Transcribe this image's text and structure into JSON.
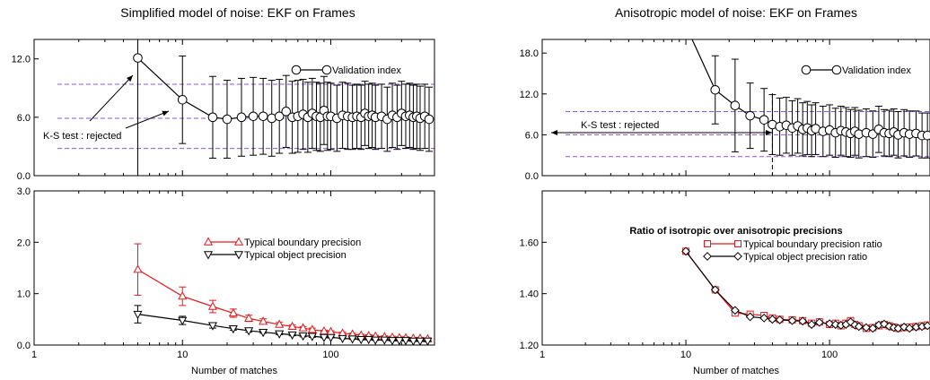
{
  "chart_data": [
    {
      "type": "line",
      "title": "Simplified model of noise: EKF on Frames",
      "xscale": "log",
      "xlim": [
        1,
        500
      ],
      "ylim": [
        0,
        14
      ],
      "yticks": [
        0,
        6,
        12
      ],
      "ytick_labels": [
        "0.0",
        "6.0",
        "12.0"
      ],
      "xticks": [
        1,
        10,
        100
      ],
      "xtick_labels": [
        "",
        "",
        ""
      ],
      "dashed_hlines": [
        2.8,
        5.9,
        9.4
      ],
      "vline": 5,
      "legend": "top-right",
      "series": [
        {
          "name": "Validation index",
          "marker": "circle",
          "x": [
            5,
            10,
            16,
            20,
            25,
            30,
            35,
            40,
            45,
            50,
            55,
            60,
            65,
            70,
            75,
            80,
            85,
            90,
            95,
            100,
            110,
            120,
            130,
            140,
            150,
            160,
            170,
            180,
            190,
            200,
            220,
            240,
            260,
            280,
            300,
            320,
            340,
            360,
            380,
            400,
            430,
            460
          ],
          "y": [
            12.1,
            7.8,
            6.0,
            5.8,
            6.0,
            6.1,
            6.1,
            5.9,
            6.1,
            6.6,
            6.0,
            6.1,
            6.3,
            6.0,
            6.4,
            6.1,
            6.0,
            6.7,
            6.1,
            6.1,
            5.9,
            6.2,
            6.1,
            6.0,
            6.1,
            6.0,
            6.4,
            6.1,
            6.2,
            6.0,
            6.1,
            5.8,
            6.2,
            6.0,
            6.4,
            6.1,
            6.2,
            6.0,
            6.1,
            5.9,
            6.1,
            5.8
          ],
          "error": [
            0,
            4.5,
            4.2,
            4.0,
            4.0,
            4.0,
            3.9,
            3.9,
            3.8,
            3.7,
            3.7,
            3.7,
            3.6,
            3.6,
            3.6,
            3.5,
            3.5,
            3.5,
            3.5,
            3.4,
            3.4,
            3.4,
            3.4,
            3.3,
            3.3,
            3.3,
            3.3,
            3.3,
            3.3,
            3.3,
            3.3,
            3.3,
            3.3,
            3.3,
            3.3,
            3.3,
            3.3,
            3.3,
            3.3,
            3.3,
            3.3,
            3.3
          ]
        }
      ],
      "annotations": [
        "K-S test : rejected"
      ]
    },
    {
      "type": "line",
      "title": "",
      "xscale": "log",
      "xlim": [
        1,
        500
      ],
      "ylim": [
        0,
        3.0
      ],
      "yticks": [
        0,
        1,
        2,
        3
      ],
      "ytick_labels": [
        "0.0",
        "1.0",
        "2.0",
        "3.0"
      ],
      "xticks": [
        1,
        10,
        100
      ],
      "xtick_labels": [
        "1",
        "10",
        "100"
      ],
      "xlabel": "Number of matches",
      "legend": "center-right",
      "series": [
        {
          "name": "Typical boundary precision",
          "color": "#e41a1c",
          "marker": "triangle-up",
          "x": [
            5,
            10,
            16,
            22,
            28,
            35,
            45,
            55,
            65,
            75,
            90,
            100,
            120,
            140,
            160,
            180,
            200,
            230,
            260,
            290,
            320,
            360,
            400,
            450
          ],
          "y": [
            1.47,
            0.95,
            0.75,
            0.62,
            0.52,
            0.46,
            0.4,
            0.36,
            0.33,
            0.3,
            0.27,
            0.26,
            0.23,
            0.21,
            0.19,
            0.18,
            0.17,
            0.16,
            0.15,
            0.14,
            0.14,
            0.13,
            0.13,
            0.12
          ],
          "error": [
            0.5,
            0.18,
            0.12,
            0.08,
            0.06,
            0.05,
            0.04,
            0.03,
            0.03,
            0.03,
            0.02,
            0.02,
            0.02,
            0.02,
            0.02,
            0.02,
            0.02,
            0.02,
            0.02,
            0.02,
            0.02,
            0.02,
            0.02,
            0.02
          ]
        },
        {
          "name": "Typical object precision",
          "color": "#000000",
          "marker": "triangle-down",
          "x": [
            5,
            10,
            16,
            22,
            28,
            35,
            45,
            55,
            65,
            75,
            90,
            100,
            120,
            140,
            160,
            180,
            200,
            230,
            260,
            290,
            320,
            360,
            400,
            450
          ],
          "y": [
            0.6,
            0.48,
            0.38,
            0.32,
            0.28,
            0.25,
            0.22,
            0.2,
            0.18,
            0.17,
            0.15,
            0.15,
            0.13,
            0.12,
            0.11,
            0.11,
            0.1,
            0.1,
            0.09,
            0.09,
            0.09,
            0.08,
            0.08,
            0.08
          ],
          "error": [
            0.17,
            0.08,
            0.05,
            0.03,
            0.03,
            0.02,
            0.02,
            0.02,
            0.02,
            0.02,
            0.01,
            0.01,
            0.01,
            0.01,
            0.01,
            0.01,
            0.01,
            0.01,
            0.01,
            0.01,
            0.01,
            0.01,
            0.01,
            0.01
          ]
        }
      ]
    },
    {
      "type": "line",
      "title": "Anisotropic model of noise: EKF on Frames",
      "xscale": "log",
      "xlim": [
        1,
        500
      ],
      "ylim": [
        0,
        20
      ],
      "yticks": [
        0,
        6,
        12,
        18
      ],
      "ytick_labels": [
        "0.0",
        "6.0",
        "12.0",
        "18.0"
      ],
      "xticks": [
        1,
        10,
        100
      ],
      "xtick_labels": [
        "",
        "",
        ""
      ],
      "dashed_hlines": [
        2.8,
        6.0,
        9.4
      ],
      "dashed_vline": 40,
      "legend": "top-right",
      "series": [
        {
          "name": "Validation index",
          "marker": "circle",
          "x": [
            10,
            16,
            22,
            28,
            35,
            40,
            45,
            50,
            55,
            60,
            65,
            70,
            75,
            80,
            90,
            100,
            110,
            120,
            130,
            140,
            150,
            160,
            180,
            200,
            220,
            240,
            260,
            280,
            300,
            330,
            360,
            400,
            440,
            480
          ],
          "y": [
            22.0,
            12.6,
            10.3,
            8.8,
            8.2,
            7.5,
            7.2,
            7.4,
            7.0,
            7.3,
            6.8,
            7.0,
            6.6,
            6.9,
            6.5,
            6.7,
            6.3,
            6.6,
            6.4,
            6.2,
            6.5,
            6.1,
            6.3,
            6.1,
            6.8,
            6.3,
            6.2,
            6.4,
            6.0,
            6.3,
            6.1,
            6.2,
            5.9,
            5.9
          ],
          "error": [
            0,
            5.0,
            6.8,
            4.8,
            4.6,
            4.4,
            4.2,
            4.1,
            4.0,
            4.0,
            3.9,
            3.9,
            3.8,
            3.8,
            3.7,
            3.7,
            3.6,
            3.6,
            3.6,
            3.5,
            3.5,
            3.5,
            3.5,
            3.4,
            3.4,
            3.4,
            3.4,
            3.4,
            3.4,
            3.4,
            3.4,
            3.3,
            3.3,
            3.3
          ]
        }
      ],
      "annotations": [
        "K-S test : rejected"
      ]
    },
    {
      "type": "line",
      "title": "Ratio of isotropic over anisotropic precisions",
      "xscale": "log",
      "xlim": [
        1,
        500
      ],
      "ylim": [
        1.2,
        1.8
      ],
      "yticks": [
        1.2,
        1.4,
        1.6
      ],
      "ytick_labels": [
        "1.20",
        "1.40",
        "1.60"
      ],
      "xticks": [
        1,
        10,
        100
      ],
      "xtick_labels": [
        "1",
        "10",
        "100"
      ],
      "xlabel": "Number of matches",
      "legend": "center-right",
      "series": [
        {
          "name": "Typical boundary precision ratio",
          "color": "#e41a1c",
          "marker": "square",
          "x": [
            10,
            16,
            22,
            28,
            35,
            40,
            45,
            55,
            65,
            75,
            85,
            100,
            110,
            120,
            130,
            140,
            150,
            160,
            180,
            200,
            220,
            240,
            260,
            280,
            300,
            330,
            360,
            400,
            440,
            480
          ],
          "y": [
            1.565,
            1.415,
            1.325,
            1.32,
            1.315,
            1.305,
            1.3,
            1.298,
            1.295,
            1.285,
            1.29,
            1.28,
            1.285,
            1.275,
            1.285,
            1.295,
            1.28,
            1.275,
            1.265,
            1.268,
            1.275,
            1.28,
            1.275,
            1.27,
            1.265,
            1.268,
            1.27,
            1.272,
            1.275,
            1.278
          ],
          "error": []
        },
        {
          "name": "Typical object precision ratio",
          "color": "#000000",
          "marker": "diamond",
          "x": [
            10,
            16,
            22,
            28,
            35,
            40,
            45,
            55,
            65,
            75,
            85,
            100,
            110,
            120,
            130,
            140,
            150,
            160,
            180,
            200,
            220,
            240,
            260,
            280,
            300,
            330,
            360,
            400,
            440,
            480
          ],
          "y": [
            1.565,
            1.415,
            1.335,
            1.31,
            1.305,
            1.3,
            1.298,
            1.295,
            1.293,
            1.28,
            1.288,
            1.283,
            1.28,
            1.277,
            1.28,
            1.29,
            1.278,
            1.272,
            1.268,
            1.265,
            1.278,
            1.282,
            1.273,
            1.268,
            1.265,
            1.27,
            1.265,
            1.27,
            1.272,
            1.275
          ],
          "error": []
        }
      ]
    }
  ]
}
